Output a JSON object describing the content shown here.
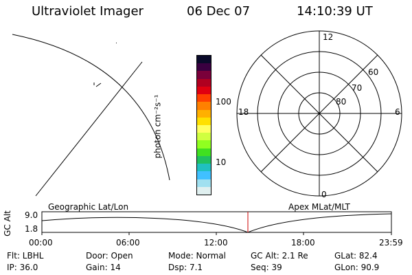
{
  "header": {
    "instrument": "Ultraviolet Imager",
    "date": "06 Dec 07",
    "time": "14:10:39 UT"
  },
  "colorbar": {
    "unit_label": "photon cm⁻²s⁻¹",
    "ticks": [
      "100",
      "10"
    ],
    "colors": [
      "#0a0a2a",
      "#3a0040",
      "#7a003a",
      "#b00020",
      "#e00010",
      "#ff4000",
      "#ff8000",
      "#ffb000",
      "#ffe000",
      "#ffff60",
      "#d0ff40",
      "#90ff20",
      "#40e020",
      "#20c060",
      "#20c0c0",
      "#40c0ff",
      "#a0e0f0",
      "#e0f0f0"
    ]
  },
  "polar": {
    "mlt_labels": {
      "top": "12",
      "bottom": "0",
      "left": "18",
      "right": "6"
    },
    "lat_labels": [
      "60",
      "70",
      "80"
    ]
  },
  "timeline": {
    "left_label": "Geographic Lat/Lon",
    "right_label": "Apex  MLat/MLT",
    "yaxis_title": "GC Alt",
    "ytick_top": "9.0",
    "ytick_bottom": "1.8",
    "xticks": [
      "00:00",
      "06:00",
      "12:00",
      "18:00",
      "23:59"
    ],
    "marker_color": "#cc0000"
  },
  "info": {
    "filter": "Flt: LBHL",
    "door": "Door: Open",
    "mode": "Mode: Normal",
    "gcalt": "GC Alt: 2.1 Re",
    "glat": "GLat:  82.4",
    "ip": "IP: 36.0",
    "gain": "Gain: 14",
    "dsp": "Dsp:      7.1",
    "seq": "Seq: 39",
    "glon": "GLon:   90.9"
  }
}
